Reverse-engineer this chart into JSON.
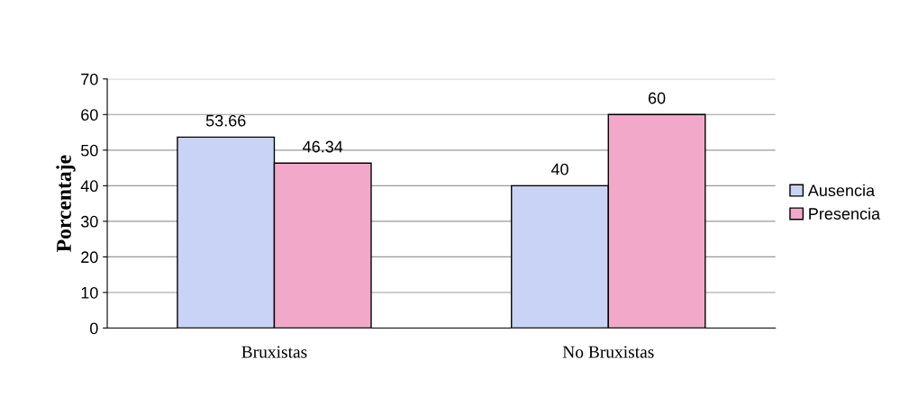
{
  "chart_data": {
    "type": "bar",
    "ylabel": "Porcentaje",
    "categories": [
      "Bruxistas",
      "No Bruxistas"
    ],
    "series": [
      {
        "name": "Ausencia",
        "color": "#c9d3f5",
        "values": [
          53.66,
          40
        ]
      },
      {
        "name": "Presencia",
        "color": "#f2a9c9",
        "values": [
          46.34,
          60
        ]
      }
    ],
    "ylim": [
      0,
      70
    ],
    "yticks": [
      0,
      10,
      20,
      30,
      40,
      50,
      60,
      70
    ],
    "grid": "y",
    "legend": "right",
    "data_labels": true
  }
}
